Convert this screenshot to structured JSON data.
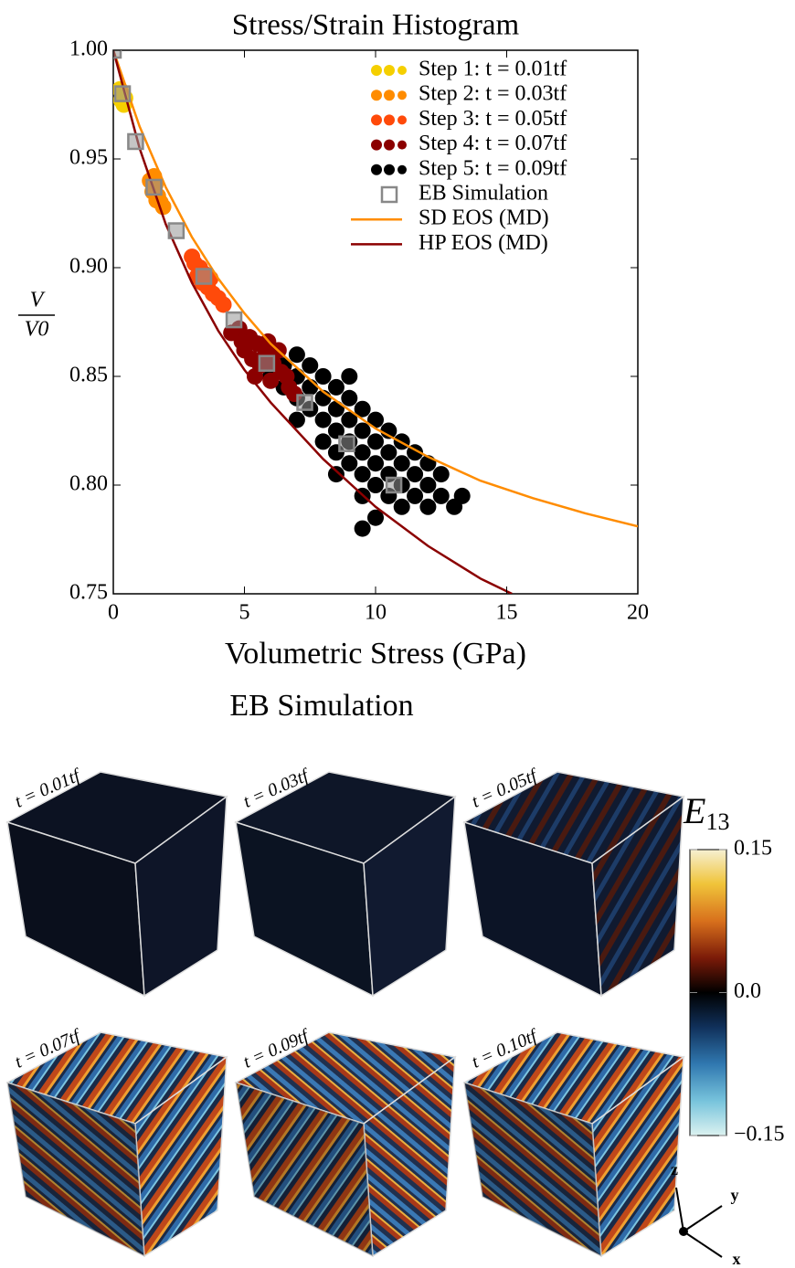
{
  "chart_data": {
    "type": "scatter",
    "title": "Stress/Strain Histogram",
    "xlabel": "Volumetric Stress (GPa)",
    "ylabel_numerator": "V",
    "ylabel_denominator": "V0",
    "xlim": [
      0,
      20
    ],
    "ylim": [
      0.75,
      1.0
    ],
    "xticks": [
      0,
      5,
      10,
      15,
      20
    ],
    "yticks": [
      0.75,
      {
        "value": 0.8,
        "label": "0.80"
      },
      0.85,
      {
        "value": 0.9,
        "label": "0.90"
      },
      0.95,
      {
        "value": 1.0,
        "label": "1.00"
      }
    ],
    "legend": "upper right",
    "series": [
      {
        "name": "Step 1: t = 0.01tf",
        "style": "dots",
        "color": "#f5cf00",
        "x": [
          0.25,
          0.35,
          0.45,
          0.3,
          0.4
        ],
        "y": [
          0.982,
          0.98,
          0.978,
          0.977,
          0.975
        ]
      },
      {
        "name": "Step 2: t = 0.03tf",
        "style": "dots",
        "color": "#ff8c00",
        "x": [
          1.4,
          1.6,
          1.5,
          1.7,
          1.8,
          1.55,
          1.9,
          1.65
        ],
        "y": [
          0.94,
          0.938,
          0.935,
          0.933,
          0.93,
          0.942,
          0.928,
          0.931
        ]
      },
      {
        "name": "Step 3: t = 0.05tf",
        "style": "dots",
        "color": "#ff4a0a",
        "x": [
          3.1,
          3.3,
          3.5,
          3.4,
          3.6,
          3.8,
          3.2,
          4.0,
          3.7,
          3.0,
          4.2
        ],
        "y": [
          0.902,
          0.9,
          0.897,
          0.893,
          0.891,
          0.888,
          0.896,
          0.886,
          0.895,
          0.905,
          0.883
        ]
      },
      {
        "name": "Step 4: t = 0.07tf",
        "style": "dots",
        "color": "#8b0000",
        "x": [
          4.8,
          5.2,
          5.5,
          5.8,
          6.1,
          6.4,
          5.0,
          5.6,
          6.0,
          6.7,
          5.3,
          6.3,
          5.9,
          4.9,
          6.6,
          5.4,
          6.9,
          4.5
        ],
        "y": [
          0.872,
          0.868,
          0.865,
          0.86,
          0.856,
          0.852,
          0.862,
          0.855,
          0.848,
          0.845,
          0.858,
          0.862,
          0.866,
          0.866,
          0.85,
          0.85,
          0.842,
          0.87
        ]
      },
      {
        "name": "Step 5: t = 0.09tf",
        "style": "dots",
        "color": "#000000",
        "x": [
          6.0,
          6.5,
          7.0,
          7.5,
          8.0,
          8.5,
          9.0,
          9.5,
          10.0,
          10.5,
          11.0,
          11.5,
          12.0,
          12.5,
          13.0,
          6.5,
          7.0,
          7.5,
          8.0,
          8.5,
          9.0,
          9.5,
          10.0,
          10.5,
          11.0,
          11.5,
          12.0,
          7.5,
          8.0,
          8.5,
          9.0,
          9.5,
          10.0,
          10.5,
          11.0,
          11.5,
          12.0,
          8.0,
          8.5,
          9.0,
          9.5,
          10.0,
          10.5,
          11.0,
          10.0,
          9.5,
          5.5,
          6.0,
          7.0,
          8.5,
          9.5,
          12.5,
          13.3,
          9.0,
          7.0
        ],
        "y": [
          0.86,
          0.855,
          0.85,
          0.845,
          0.84,
          0.835,
          0.83,
          0.825,
          0.82,
          0.815,
          0.81,
          0.805,
          0.8,
          0.795,
          0.79,
          0.845,
          0.84,
          0.835,
          0.83,
          0.825,
          0.82,
          0.815,
          0.81,
          0.805,
          0.8,
          0.795,
          0.79,
          0.855,
          0.85,
          0.845,
          0.84,
          0.835,
          0.83,
          0.825,
          0.82,
          0.815,
          0.81,
          0.82,
          0.815,
          0.81,
          0.805,
          0.8,
          0.795,
          0.79,
          0.785,
          0.78,
          0.865,
          0.85,
          0.86,
          0.805,
          0.795,
          0.805,
          0.795,
          0.85,
          0.83
        ]
      },
      {
        "name": "EB Simulation",
        "style": "squares",
        "color": "#888888",
        "x": [
          0,
          0.35,
          0.85,
          1.55,
          2.4,
          3.45,
          4.6,
          5.85,
          7.3,
          8.9,
          10.7
        ],
        "y": [
          1.0,
          0.98,
          0.958,
          0.937,
          0.917,
          0.896,
          0.876,
          0.856,
          0.838,
          0.819,
          0.8
        ]
      },
      {
        "name": "SD EOS (MD)",
        "style": "line",
        "color": "#ff8c00",
        "x": [
          0,
          1,
          2,
          3,
          4,
          5,
          6,
          8,
          10,
          12,
          14,
          16,
          18,
          20
        ],
        "y": [
          1.0,
          0.965,
          0.937,
          0.914,
          0.895,
          0.879,
          0.865,
          0.843,
          0.826,
          0.813,
          0.802,
          0.794,
          0.787,
          0.781
        ]
      },
      {
        "name": "HP EOS (MD)",
        "style": "line",
        "color": "#8b0000",
        "x": [
          0,
          1,
          2,
          3,
          4,
          5,
          6,
          8,
          10,
          12,
          14,
          15.2
        ],
        "y": [
          1.0,
          0.955,
          0.92,
          0.893,
          0.871,
          0.853,
          0.838,
          0.812,
          0.79,
          0.772,
          0.757,
          0.75
        ]
      }
    ]
  },
  "simulation": {
    "title": "EB Simulation",
    "panels": [
      {
        "label": "t = 0.01tf"
      },
      {
        "label": "t = 0.03tf"
      },
      {
        "label": "t = 0.05tf"
      },
      {
        "label": "t = 0.07tf"
      },
      {
        "label": "t = 0.09tf"
      },
      {
        "label": "t = 0.10tf"
      }
    ],
    "colorbar": {
      "label": "E",
      "label_subscript": "13",
      "lim": [
        -0.15,
        0.15
      ],
      "ticks": [
        0.15,
        {
          "value": 0,
          "label": "0.0"
        },
        {
          "value": -0.15,
          "label": "−0.15"
        }
      ]
    },
    "axes": {
      "z": "z",
      "y": "y",
      "x": "x"
    }
  }
}
